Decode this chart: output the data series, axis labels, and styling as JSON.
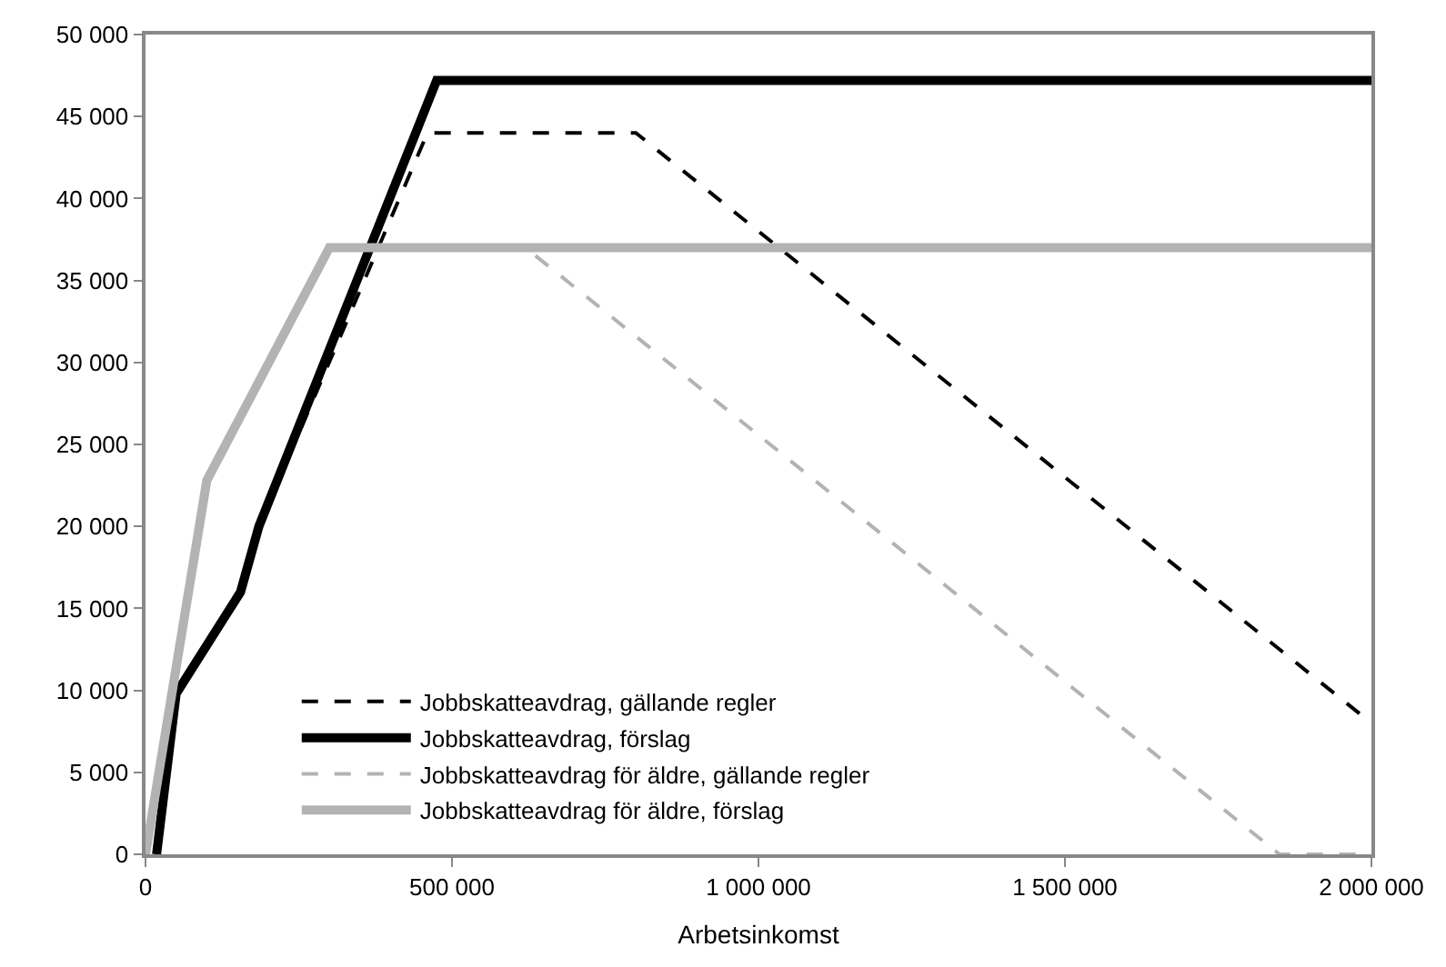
{
  "chart_data": {
    "type": "line",
    "xlabel": "Arbetsinkomst",
    "xlim": [
      0,
      2000000
    ],
    "xticks": [
      {
        "value": 0,
        "label": "0"
      },
      {
        "value": 500000,
        "label": "500 000"
      },
      {
        "value": 1000000,
        "label": "1 000 000"
      },
      {
        "value": 1500000,
        "label": "1 500 000"
      },
      {
        "value": 2000000,
        "label": "2 000 000"
      }
    ],
    "ylim": [
      0,
      50000
    ],
    "yticks": [
      {
        "value": 0,
        "label": "0"
      },
      {
        "value": 5000,
        "label": "5 000"
      },
      {
        "value": 10000,
        "label": "10 000"
      },
      {
        "value": 15000,
        "label": "15 000"
      },
      {
        "value": 20000,
        "label": "20 000"
      },
      {
        "value": 25000,
        "label": "25 000"
      },
      {
        "value": 30000,
        "label": "30 000"
      },
      {
        "value": 35000,
        "label": "35 000"
      },
      {
        "value": 40000,
        "label": "40 000"
      },
      {
        "value": 45000,
        "label": "45 000"
      },
      {
        "value": 50000,
        "label": "50 000"
      }
    ],
    "legend": "bottom left",
    "marker": "none",
    "series": [
      {
        "name": "Jobbskatteavdrag, gällande regler",
        "color": "#000000",
        "line_style": "dashed",
        "x": [
          18000,
          50000,
          155000,
          185000,
          460000,
          800000,
          2000000
        ],
        "values": [
          0,
          9800,
          16000,
          20000,
          44000,
          44000,
          8000
        ]
      },
      {
        "name": "Jobbskatteavdrag, förslag",
        "color": "#000000",
        "line_style": "solid",
        "x": [
          18000,
          50000,
          155000,
          185000,
          475000,
          2000000
        ],
        "values": [
          0,
          9800,
          16000,
          20000,
          47200,
          47200
        ]
      },
      {
        "name": "Jobbskatteavdrag för äldre, gällande regler",
        "color": "#b3b3b3",
        "line_style": "dashed",
        "x": [
          0,
          100000,
          300000,
          620000,
          1850000,
          2000000
        ],
        "values": [
          0,
          22800,
          37000,
          37000,
          0,
          0
        ]
      },
      {
        "name": "Jobbskatteavdrag för äldre, förslag",
        "color": "#b3b3b3",
        "line_style": "solid",
        "x": [
          0,
          100000,
          300000,
          2000000
        ],
        "values": [
          0,
          22800,
          37000,
          37000
        ]
      }
    ]
  }
}
